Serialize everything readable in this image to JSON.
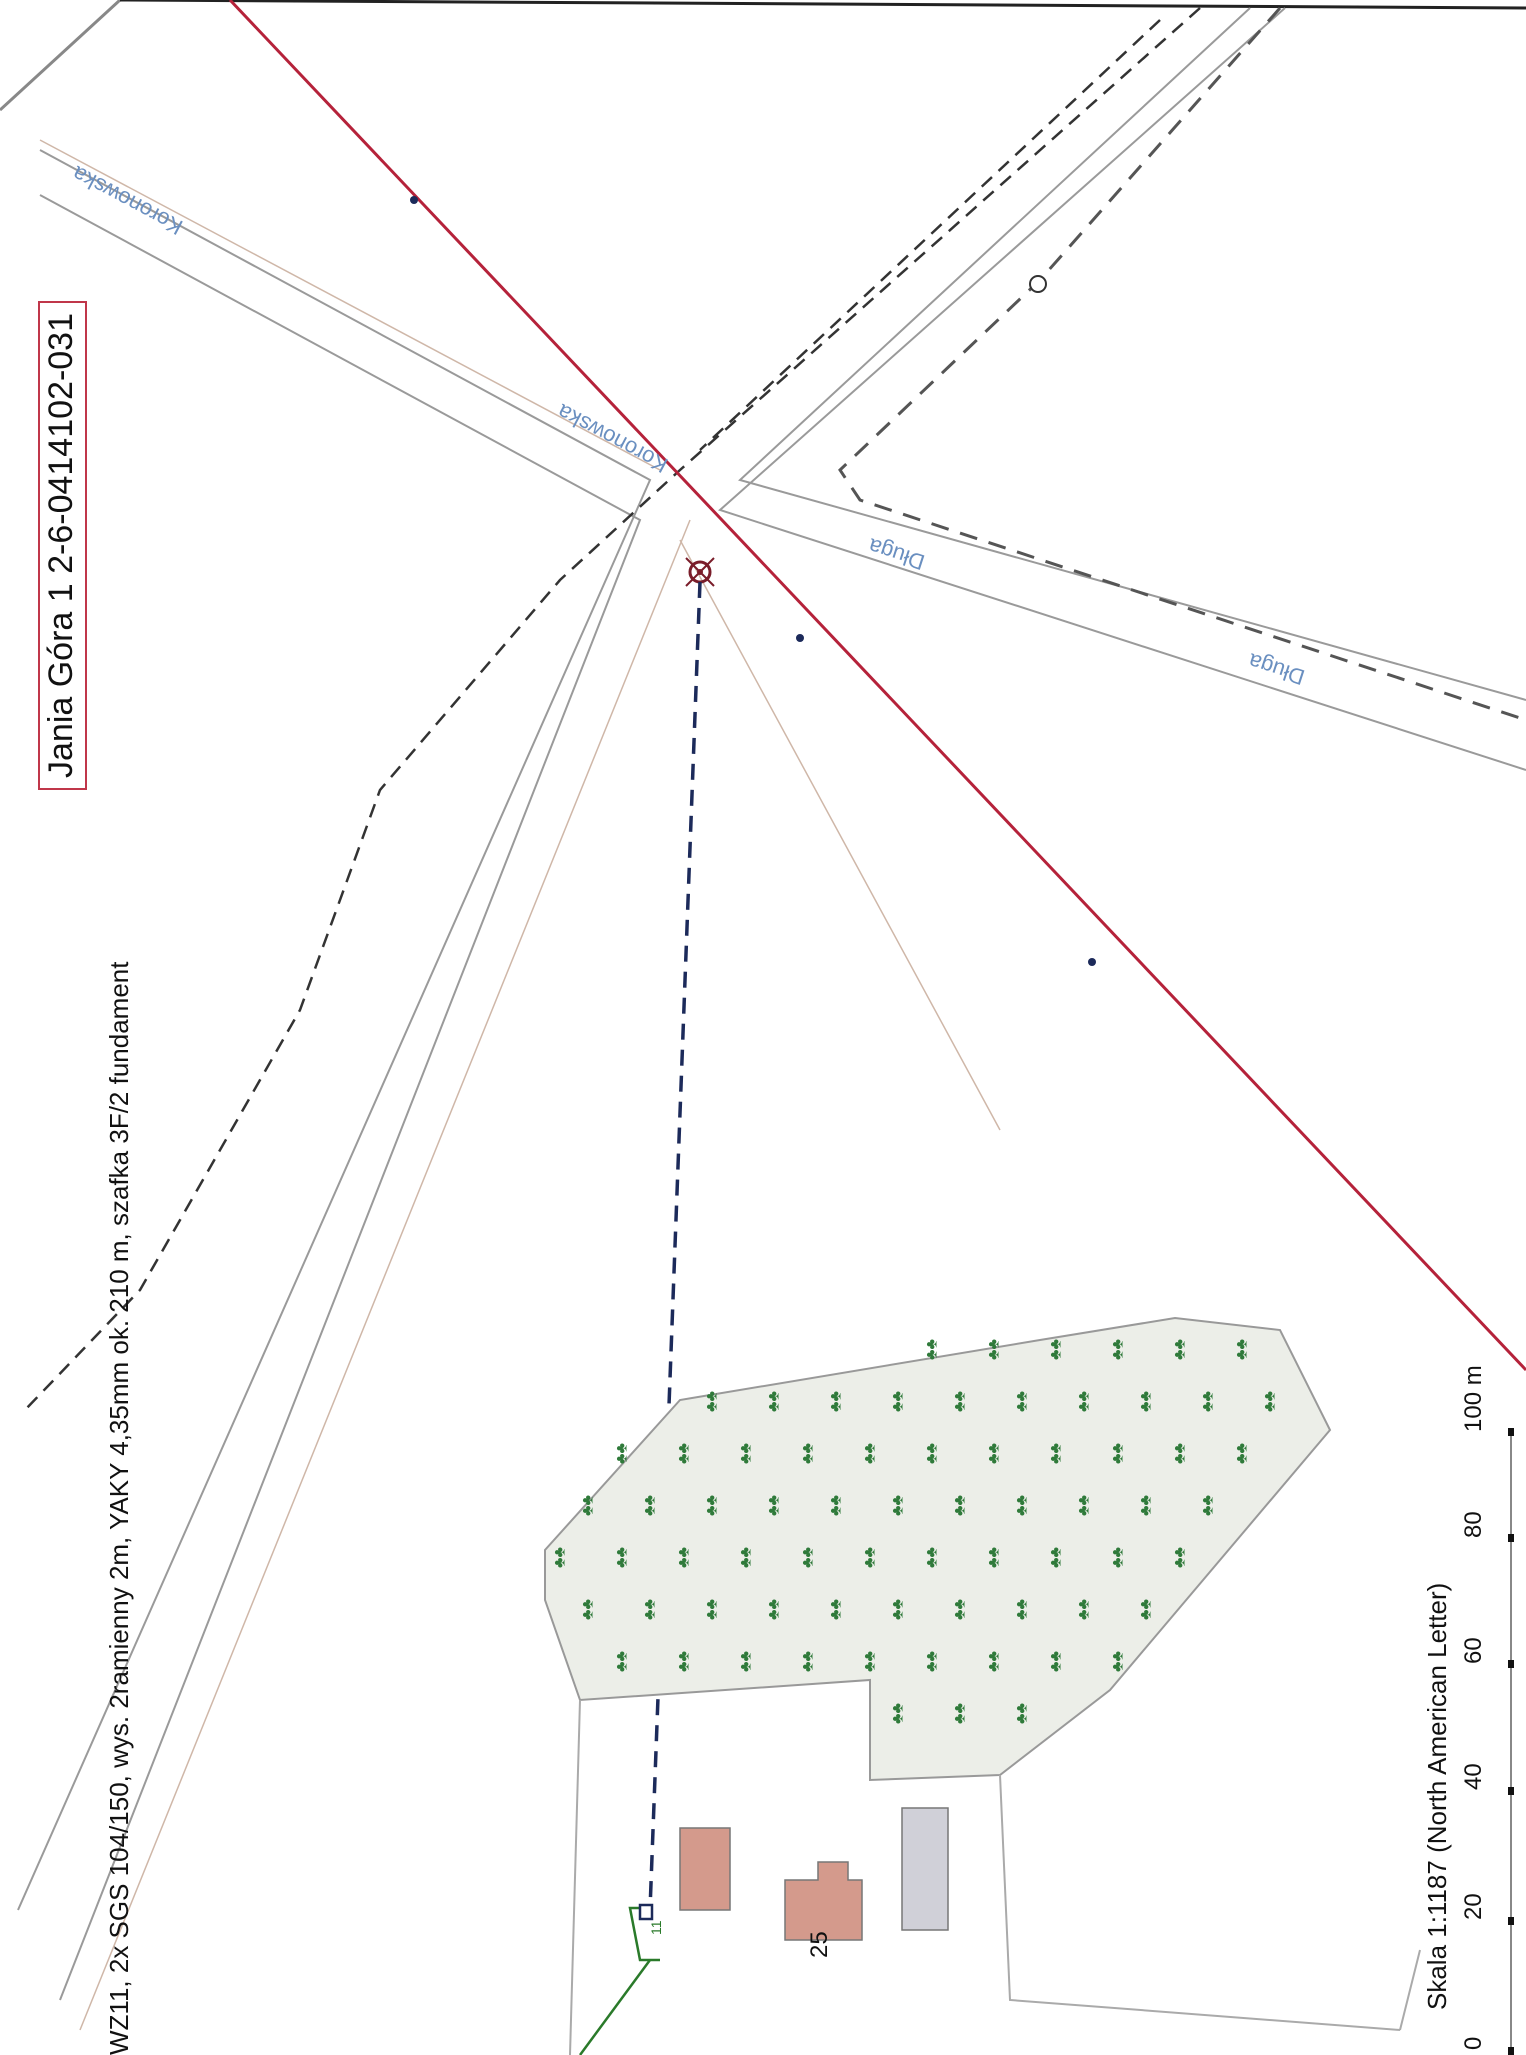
{
  "header": {
    "title": "Jania Góra 1 2-6-0414102-031",
    "description": "WZ11, 2x SGS 104/150, wys. 2ramienny 2m, YAKY 4,35mm ok. 210 m, szafka 3F/2 fundament"
  },
  "streets": [
    "Koronowska",
    "Koronowska",
    "Długa",
    "Długa"
  ],
  "building_number": "25",
  "node_label": "11",
  "scale": {
    "label": "Skala 1:1187 (North American Letter)",
    "ticks": [
      "0",
      "20",
      "40",
      "60",
      "80",
      "100 m"
    ]
  },
  "colors": {
    "power_line": "#b5223a",
    "cable": "#1c2a5a",
    "building": "#d49a8c",
    "shed": "#d0d0d8",
    "forest_fill": "#eceee8",
    "tree": "#2f7a3a",
    "road": "#9a9a9a",
    "road_label": "#6a8fc0",
    "existing_link": "#2a7a2a"
  }
}
